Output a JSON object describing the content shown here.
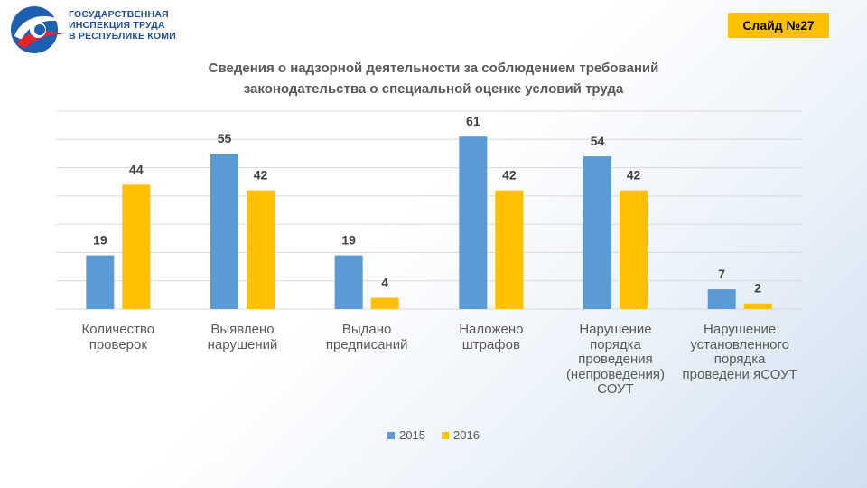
{
  "header": {
    "org_line1": "ГОСУДАРСТВЕННАЯ",
    "org_line2": "ИНСПЕКЦИЯ ТРУДА",
    "org_line3": "В РЕСПУБЛИКЕ КОМИ",
    "slide_label": "Слайд №27"
  },
  "colors": {
    "s2015": "#5b9bd5",
    "s2016": "#ffc000",
    "text": "#595959",
    "grid": "#d9d9d9"
  },
  "chart_data": {
    "type": "bar",
    "title": "Сведения о надзорной деятельности за соблюдением требований законодательства о специальной оценке условий труда",
    "title_line1": "Сведения о надзорной деятельности за соблюдением требований",
    "title_line2": "законодательства о специальной оценке условий труда",
    "categories": [
      "Количество проверок",
      "Выявлено нарушений",
      "Выдано предписаний",
      "Наложено штрафов",
      "Нарушение порядка проведения (непроведения) СОУТ",
      "Нарушение установленного порядка проведени яСОУТ"
    ],
    "category_lines": [
      [
        "Количество",
        "проверок"
      ],
      [
        "Выявлено",
        "нарушений"
      ],
      [
        "Выдано",
        "предписаний"
      ],
      [
        "Наложено",
        "штрафов"
      ],
      [
        "Нарушение",
        "порядка",
        "проведения",
        "(непроведения)",
        "СОУТ"
      ],
      [
        "Нарушение",
        "установленного",
        "порядка",
        "проведени яСОУТ"
      ]
    ],
    "series": [
      {
        "name": "2015",
        "values": [
          19,
          55,
          19,
          61,
          54,
          7
        ]
      },
      {
        "name": "2016",
        "values": [
          44,
          42,
          4,
          42,
          42,
          2
        ]
      }
    ],
    "ylim": [
      0,
      70
    ],
    "xlabel": "",
    "ylabel": "",
    "grid": true,
    "legend": "bottom"
  }
}
